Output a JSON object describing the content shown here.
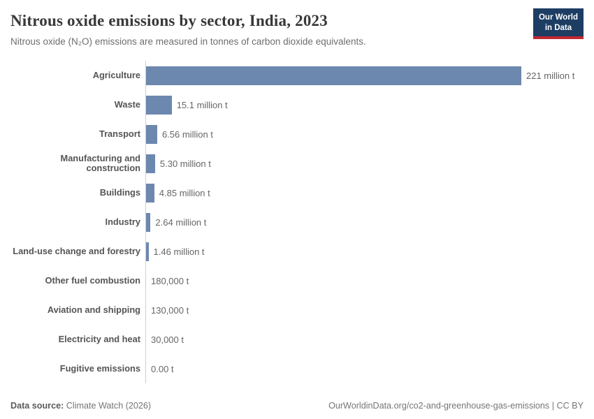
{
  "header": {
    "title": "Nitrous oxide emissions by sector, India, 2023",
    "subtitle": "Nitrous oxide (N₂O) emissions are measured in tonnes of carbon dioxide equivalents.",
    "logo": {
      "line1": "Our World",
      "line2": "in Data"
    }
  },
  "chart_data": {
    "type": "bar",
    "orientation": "horizontal",
    "title": "Nitrous oxide emissions by sector, India, 2023",
    "unit": "tonnes of carbon dioxide equivalents",
    "xlim": [
      0,
      221
    ],
    "grid": false,
    "legend": false,
    "bar_color": "#6d88ae",
    "axis_color": "#cfcfcf",
    "categories": [
      "Agriculture",
      "Waste",
      "Transport",
      "Manufacturing and construction",
      "Buildings",
      "Industry",
      "Land-use change and forestry",
      "Other fuel combustion",
      "Aviation and shipping",
      "Electricity and heat",
      "Fugitive emissions"
    ],
    "values": [
      221,
      15.1,
      6.56,
      5.3,
      4.85,
      2.64,
      1.46,
      0.18,
      0.13,
      0.03,
      0
    ],
    "value_labels": [
      "221 million t",
      "15.1 million t",
      "6.56 million t",
      "5.30 million t",
      "4.85 million t",
      "2.64 million t",
      "1.46 million t",
      "180,000 t",
      "130,000 t",
      "30,000 t",
      "0.00 t"
    ]
  },
  "footer": {
    "source_label": "Data source:",
    "source_value": " Climate Watch (2026)",
    "credit": "OurWorldinData.org/co2-and-greenhouse-gas-emissions | CC BY"
  }
}
